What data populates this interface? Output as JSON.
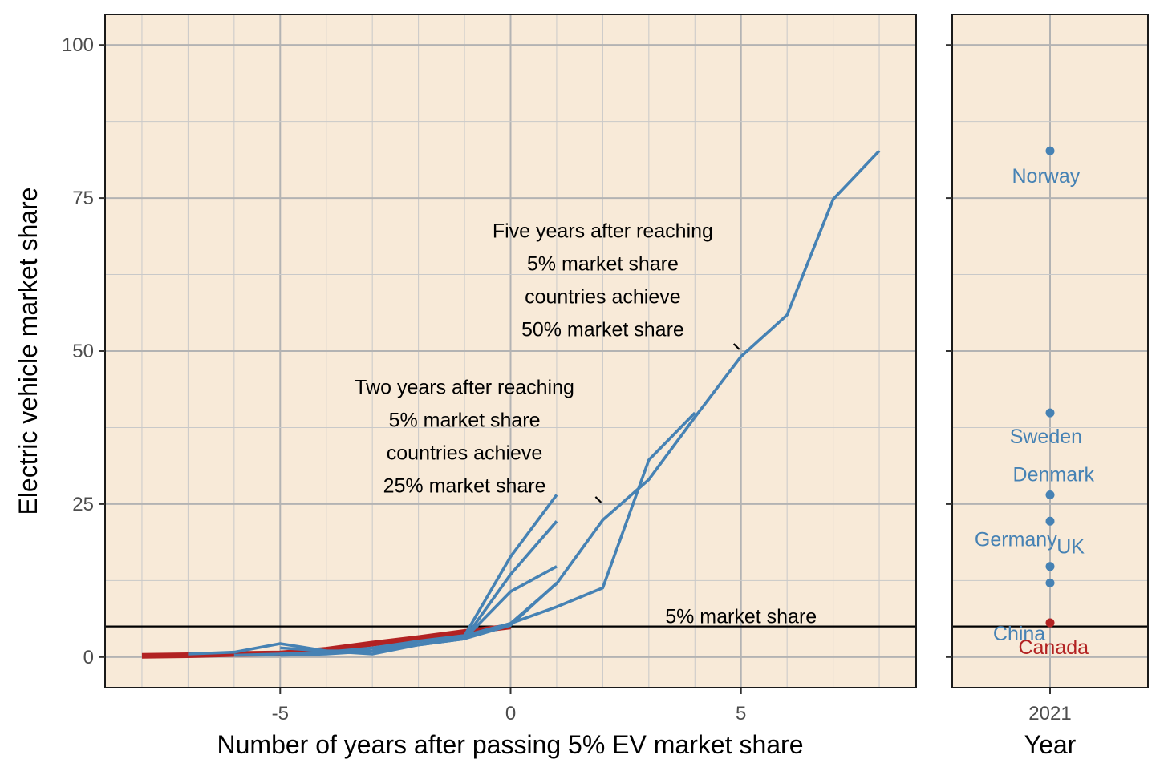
{
  "chart_data": [
    {
      "type": "line",
      "xlabel": "Number of years after passing 5% EV market share",
      "ylabel": "Electric vehicle market share",
      "xlim": [
        -8.8,
        8.8
      ],
      "ylim": [
        -5,
        105
      ],
      "xticks": [
        -5,
        0,
        5
      ],
      "xtick_labels": [
        "-5",
        "0",
        "5"
      ],
      "yticks": [
        0,
        25,
        50,
        75,
        100
      ],
      "ytick_labels": [
        "0",
        "25",
        "50",
        "75",
        "100"
      ],
      "reference_line": {
        "y": 5,
        "label": "5% market share",
        "label_x": 5
      },
      "colors": {
        "canada": "#b22222",
        "others": "#4682b4",
        "panel_bg": "#f8ead8"
      },
      "series": [
        {
          "name": "Canada",
          "x": [
            -8,
            -7,
            -6,
            -5,
            -4,
            -3,
            -2,
            -1,
            0
          ],
          "y": [
            0.2,
            0.3,
            0.5,
            0.6,
            1.2,
            2.2,
            3.1,
            4.1,
            5.0
          ]
        },
        {
          "name": "Norway",
          "x": [
            -7,
            -6,
            -5,
            -4,
            -3,
            -2,
            -1,
            0,
            1,
            2,
            3,
            4,
            5,
            6,
            7,
            8
          ],
          "y": [
            0.5,
            0.8,
            2.2,
            1.0,
            1.0,
            2.5,
            3.5,
            5.5,
            12.0,
            22.4,
            29.0,
            39.2,
            49.1,
            55.9,
            74.8,
            82.7
          ]
        },
        {
          "name": "Sweden",
          "x": [
            -6,
            -5,
            -4,
            -3,
            -2,
            -1,
            0,
            1,
            2,
            3,
            4
          ],
          "y": [
            0.3,
            0.5,
            0.8,
            1.5,
            2.6,
            3.5,
            5.5,
            8.2,
            11.3,
            32.2,
            39.9
          ]
        },
        {
          "name": "Denmark",
          "x": [
            -5,
            -4,
            -3,
            -2,
            -1,
            0,
            1
          ],
          "y": [
            1.5,
            1.0,
            0.5,
            2.0,
            3.5,
            16.4,
            26.5
          ]
        },
        {
          "name": "Germany",
          "x": [
            -5,
            -4,
            -3,
            -2,
            -1,
            0,
            1
          ],
          "y": [
            0.3,
            0.5,
            1.0,
            2.0,
            3.0,
            13.5,
            22.2
          ]
        },
        {
          "name": "UK",
          "x": [
            -5,
            -4,
            -3,
            -2,
            -1,
            0,
            1
          ],
          "y": [
            0.5,
            0.7,
            1.0,
            2.0,
            3.0,
            10.7,
            14.8
          ]
        },
        {
          "name": "China",
          "x": [
            -3,
            -2,
            -1,
            0,
            1
          ],
          "y": [
            1.5,
            2.0,
            3.0,
            5.2,
            12.1
          ]
        }
      ],
      "annotations": [
        {
          "lines": [
            "Five years after reaching",
            "5% market share",
            "countries achieve",
            "50% market share"
          ],
          "x": 2.0,
          "y_top": 68.5,
          "pointer_x": 5,
          "pointer_y": 50
        },
        {
          "lines": [
            "Two years after reaching",
            "5% market share",
            "countries achieve",
            "25% market share"
          ],
          "x": -1.0,
          "y_top": 43.0,
          "pointer_x": 2,
          "pointer_y": 25
        }
      ]
    },
    {
      "type": "scatter",
      "xlabel": "Year",
      "xtick_labels": [
        "2021"
      ],
      "ylim": [
        -5,
        105
      ],
      "reference_line": {
        "y": 5
      },
      "points": [
        {
          "label": "Norway",
          "x": 2021,
          "y": 82.7,
          "color": "#4682b4"
        },
        {
          "label": "Sweden",
          "x": 2021,
          "y": 39.9,
          "color": "#4682b4"
        },
        {
          "label": "Denmark",
          "x": 2021,
          "y": 26.5,
          "color": "#4682b4"
        },
        {
          "label": "Germany",
          "x": 2021,
          "y": 22.2,
          "color": "#4682b4"
        },
        {
          "label": "UK",
          "x": 2021,
          "y": 14.8,
          "color": "#4682b4"
        },
        {
          "label": "China",
          "x": 2021,
          "y": 12.1,
          "color": "#4682b4"
        },
        {
          "label": "Canada",
          "x": 2021,
          "y": 5.6,
          "color": "#b22222"
        }
      ],
      "label_offsets_y": {
        "Norway": -4.0,
        "Sweden": -3.8,
        "Denmark": 3.4,
        "Germany": -2.9,
        "UK": 3.3,
        "China": -8.2,
        "Canada": -3.9
      },
      "label_offsets_x": {
        "Norway": -0.06,
        "Sweden": -0.06,
        "Denmark": 0.05,
        "Germany": -0.5,
        "UK": 0.3,
        "China": -0.45,
        "Canada": 0.05
      }
    }
  ]
}
